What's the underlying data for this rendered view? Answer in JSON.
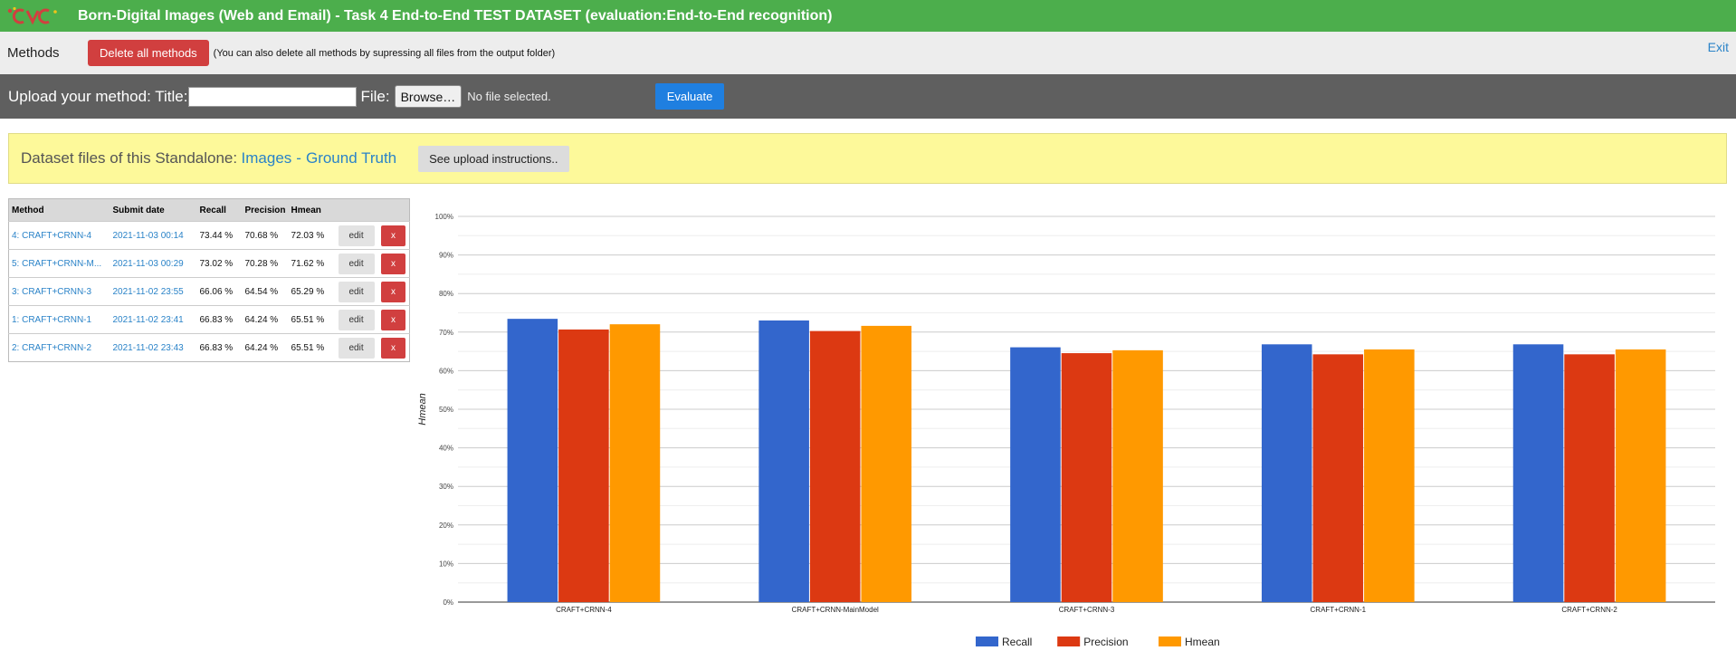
{
  "header": {
    "title": "Born-Digital Images (Web and Email) - Task 4 End-to-End TEST DATASET (evaluation:End-to-End recognition)",
    "logo_icon": "cvc-logo-icon",
    "bg_color": "#4cae4c"
  },
  "methods_bar": {
    "label": "Methods",
    "delete_all_label": "Delete all methods",
    "delete_note": "(You can also delete all methods by supressing all files from the output folder)",
    "exit_label": "Exit"
  },
  "upload": {
    "label": "Upload your method: Title:",
    "title_value": "",
    "file_label": "File:",
    "browse_label": "Browse…",
    "file_status": "No file selected.",
    "evaluate_label": "Evaluate"
  },
  "dataset": {
    "text": "Dataset files of this Standalone:",
    "images_link": "Images",
    "separator": "-",
    "gt_link": "Ground Truth",
    "instructions_label": "See upload instructions.."
  },
  "table": {
    "headers": [
      "Method",
      "Submit date",
      "Recall",
      "Precision",
      "Hmean"
    ],
    "edit_label": "edit",
    "delete_label": "x",
    "rows": [
      {
        "method": "4: CRAFT+CRNN-4",
        "date": "2021-11-03 00:14",
        "recall": "73.44 %",
        "precision": "70.68 %",
        "hmean": "72.03 %"
      },
      {
        "method": "5: CRAFT+CRNN-M...",
        "date": "2021-11-03 00:29",
        "recall": "73.02 %",
        "precision": "70.28 %",
        "hmean": "71.62 %"
      },
      {
        "method": "3: CRAFT+CRNN-3",
        "date": "2021-11-02 23:55",
        "recall": "66.06 %",
        "precision": "64.54 %",
        "hmean": "65.29 %"
      },
      {
        "method": "1: CRAFT+CRNN-1",
        "date": "2021-11-02 23:41",
        "recall": "66.83 %",
        "precision": "64.24 %",
        "hmean": "65.51 %"
      },
      {
        "method": "2: CRAFT+CRNN-2",
        "date": "2021-11-02 23:43",
        "recall": "66.83 %",
        "precision": "64.24 %",
        "hmean": "65.51 %"
      }
    ]
  },
  "chart_data": {
    "type": "bar",
    "title": "",
    "xlabel": "",
    "ylabel": "Hmean",
    "ylim": [
      0,
      100
    ],
    "y_ticks": [
      "0%",
      "10%",
      "20%",
      "30%",
      "40%",
      "50%",
      "60%",
      "70%",
      "80%",
      "90%",
      "100%"
    ],
    "grid": true,
    "legend_position": "bottom",
    "categories": [
      "CRAFT+CRNN-4",
      "CRAFT+CRNN-MainModel",
      "CRAFT+CRNN-3",
      "CRAFT+CRNN-1",
      "CRAFT+CRNN-2"
    ],
    "series": [
      {
        "name": "Recall",
        "color": "#3366cc",
        "values": [
          73.44,
          73.02,
          66.06,
          66.83,
          66.83
        ]
      },
      {
        "name": "Precision",
        "color": "#dc3912",
        "values": [
          70.68,
          70.28,
          64.54,
          64.24,
          64.24
        ]
      },
      {
        "name": "Hmean",
        "color": "#ff9900",
        "values": [
          72.03,
          71.62,
          65.29,
          65.51,
          65.51
        ]
      }
    ]
  }
}
